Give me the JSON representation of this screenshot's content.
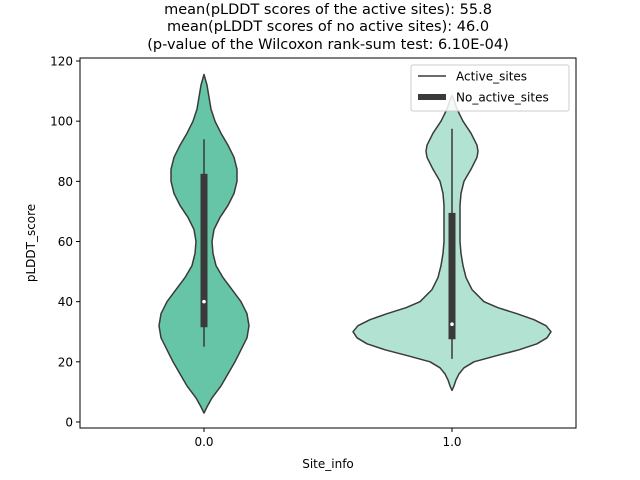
{
  "chart_data": {
    "type": "violin",
    "title_lines": [
      "mean(pLDDT scores of the active sites): 55.8",
      "mean(pLDDT scores of no active sites): 46.0",
      "(p-value of the Wilcoxon rank-sum test: 6.10E-04)"
    ],
    "xlabel": "Site_info",
    "ylabel": "pLDDT_score",
    "ylim": [
      -2,
      121
    ],
    "yticks": [
      "0",
      "20",
      "40",
      "60",
      "80",
      "100",
      "120"
    ],
    "categories": [
      "0.0",
      "1.0"
    ],
    "legend": {
      "position": "top-right",
      "entries": [
        "Active_sites",
        "No_active_sites"
      ]
    },
    "series": [
      {
        "category": "0.0",
        "color": "#66c5a7",
        "stats": {
          "whisker_low": 25,
          "q1": 31.5,
          "median": 40,
          "q3": 82.5,
          "whisker_high": 94
        },
        "density": [
          [
            3,
            0
          ],
          [
            5,
            3
          ],
          [
            8,
            8
          ],
          [
            12,
            17
          ],
          [
            16,
            24
          ],
          [
            20,
            31
          ],
          [
            24,
            37
          ],
          [
            28,
            43
          ],
          [
            32,
            45
          ],
          [
            36,
            43
          ],
          [
            40,
            37
          ],
          [
            44,
            28
          ],
          [
            48,
            19
          ],
          [
            52,
            12
          ],
          [
            56,
            9
          ],
          [
            60,
            8
          ],
          [
            64,
            10
          ],
          [
            68,
            16
          ],
          [
            72,
            24
          ],
          [
            76,
            30
          ],
          [
            80,
            33
          ],
          [
            84,
            33
          ],
          [
            88,
            30
          ],
          [
            92,
            24
          ],
          [
            96,
            17
          ],
          [
            100,
            11
          ],
          [
            104,
            7
          ],
          [
            108,
            5
          ],
          [
            112,
            3
          ],
          [
            115.5,
            0
          ]
        ]
      },
      {
        "category": "1.0",
        "color": "#b1e2d2",
        "stats": {
          "whisker_low": 21,
          "q1": 27.5,
          "median": 32.5,
          "q3": 69.5,
          "whisker_high": 97.5
        },
        "density": [
          [
            10.5,
            0
          ],
          [
            12,
            2
          ],
          [
            14,
            4
          ],
          [
            16,
            7
          ],
          [
            18,
            12
          ],
          [
            20,
            22
          ],
          [
            22,
            44
          ],
          [
            24,
            67
          ],
          [
            26,
            85
          ],
          [
            28,
            95
          ],
          [
            30,
            99
          ],
          [
            32,
            94
          ],
          [
            34,
            82
          ],
          [
            36,
            65
          ],
          [
            38,
            46
          ],
          [
            40,
            32
          ],
          [
            44,
            20
          ],
          [
            48,
            14
          ],
          [
            52,
            11
          ],
          [
            56,
            9
          ],
          [
            60,
            8
          ],
          [
            64,
            8
          ],
          [
            68,
            8
          ],
          [
            72,
            8
          ],
          [
            76,
            9
          ],
          [
            80,
            12
          ],
          [
            84,
            19
          ],
          [
            88,
            25
          ],
          [
            90,
            26
          ],
          [
            92,
            25
          ],
          [
            96,
            19
          ],
          [
            100,
            11
          ],
          [
            104,
            5
          ],
          [
            107,
            2
          ],
          [
            108.5,
            0
          ]
        ]
      }
    ]
  }
}
